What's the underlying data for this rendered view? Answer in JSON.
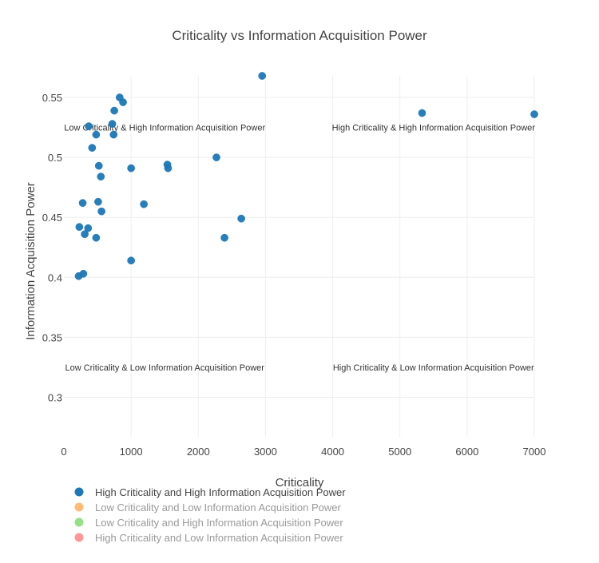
{
  "chart_data": {
    "type": "scatter",
    "title": "Criticality vs Information Acquisition Power",
    "xlabel": "Criticality",
    "ylabel": "Information Acquisition Power",
    "xlim": [
      0,
      7000
    ],
    "ylim": [
      0.267,
      0.568
    ],
    "grid": true,
    "x_ticks": [
      0,
      1000,
      2000,
      3000,
      4000,
      5000,
      6000,
      7000
    ],
    "y_ticks": [
      0.3,
      0.35,
      0.4,
      0.45,
      0.5,
      0.55
    ],
    "x_tick_labels": [
      "0",
      "1000",
      "2000",
      "3000",
      "4000",
      "5000",
      "6000",
      "7000"
    ],
    "y_tick_labels": [
      "0.3",
      "0.35",
      "0.4",
      "0.45",
      "0.5",
      "0.55"
    ],
    "annotations": [
      {
        "text": "Low Criticality & High Information Acquisition Power",
        "x": 1500,
        "y": 0.525
      },
      {
        "text": "High Criticality & High Information Acquisition Power",
        "x": 5500,
        "y": 0.525
      },
      {
        "text": "Low Criticality & Low Information Acquisition Power",
        "x": 1500,
        "y": 0.325
      },
      {
        "text": "High Criticality & Low Information Acquisition Power",
        "x": 5500,
        "y": 0.325
      }
    ],
    "legend": {
      "placement": "bottom-left",
      "entries": [
        {
          "name": "High Criticality and High Information Acquisition Power",
          "color": "#1f77b4",
          "active": true
        },
        {
          "name": "Low Criticality and Low Information Acquisition Power",
          "color": "#ffbb78",
          "active": false
        },
        {
          "name": "Low Criticality and High Information Acquisition Power",
          "color": "#98df8a",
          "active": false
        },
        {
          "name": "High Criticality and Low Information Acquisition Power",
          "color": "#ff9896",
          "active": false
        }
      ]
    },
    "series": [
      {
        "name": "High Criticality and High Information Acquisition Power",
        "color": "#1f77b4",
        "points": [
          {
            "x": 2950,
            "y": 0.568
          },
          {
            "x": 830,
            "y": 0.55
          },
          {
            "x": 880,
            "y": 0.546
          },
          {
            "x": 5330,
            "y": 0.537
          },
          {
            "x": 7000,
            "y": 0.536
          },
          {
            "x": 750,
            "y": 0.539
          },
          {
            "x": 720,
            "y": 0.528
          },
          {
            "x": 370,
            "y": 0.526
          },
          {
            "x": 480,
            "y": 0.519
          },
          {
            "x": 740,
            "y": 0.519
          },
          {
            "x": 420,
            "y": 0.508
          },
          {
            "x": 2270,
            "y": 0.5
          },
          {
            "x": 1540,
            "y": 0.494
          },
          {
            "x": 520,
            "y": 0.493
          },
          {
            "x": 1000,
            "y": 0.491
          },
          {
            "x": 1550,
            "y": 0.491
          },
          {
            "x": 550,
            "y": 0.484
          },
          {
            "x": 510,
            "y": 0.463
          },
          {
            "x": 280,
            "y": 0.462
          },
          {
            "x": 1190,
            "y": 0.461
          },
          {
            "x": 560,
            "y": 0.455
          },
          {
            "x": 2640,
            "y": 0.449
          },
          {
            "x": 230,
            "y": 0.442
          },
          {
            "x": 360,
            "y": 0.441
          },
          {
            "x": 310,
            "y": 0.436
          },
          {
            "x": 480,
            "y": 0.433
          },
          {
            "x": 2390,
            "y": 0.433
          },
          {
            "x": 1000,
            "y": 0.414
          },
          {
            "x": 290,
            "y": 0.403
          },
          {
            "x": 220,
            "y": 0.401
          }
        ]
      }
    ]
  }
}
